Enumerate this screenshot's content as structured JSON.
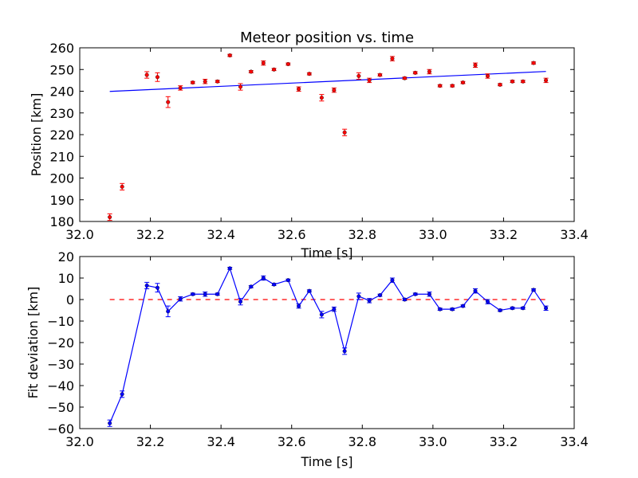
{
  "chart_data": [
    {
      "type": "scatter",
      "title": "Meteor position vs. time",
      "xlabel": "Time [s]",
      "ylabel": "Position [km]",
      "xlim": [
        32.0,
        33.4
      ],
      "ylim": [
        180,
        260
      ],
      "xticks": [
        "32.0",
        "32.2",
        "32.4",
        "32.6",
        "32.8",
        "33.0",
        "33.2",
        "33.4"
      ],
      "yticks": [
        "180",
        "190",
        "200",
        "210",
        "220",
        "230",
        "240",
        "250",
        "260"
      ],
      "grid": false,
      "marker_color": "#ff0000",
      "fit_color": "#0000ff",
      "series": [
        {
          "x": [
            32.085,
            32.12,
            32.19,
            32.22,
            32.25,
            32.285,
            32.32,
            32.355,
            32.39,
            32.425,
            32.455,
            32.485,
            32.52,
            32.55,
            32.59,
            32.62,
            32.65,
            32.685,
            32.72,
            32.75,
            32.79,
            32.82,
            32.85,
            32.885,
            32.92,
            32.95,
            32.99,
            33.02,
            33.055,
            33.085,
            33.12,
            33.155,
            33.19,
            33.225,
            33.255,
            33.285,
            33.32
          ],
          "y": [
            182,
            196,
            247.5,
            246.5,
            235,
            241.5,
            244,
            244.5,
            244.5,
            256.5,
            242,
            249,
            253,
            250,
            252.5,
            241,
            248,
            237,
            240.5,
            221,
            247,
            245,
            247.5,
            255,
            246,
            248.5,
            249,
            242.5,
            242.5,
            244,
            252,
            247,
            243,
            244.5,
            244.5,
            253,
            245
          ],
          "err": [
            1.5,
            1.5,
            1.5,
            2,
            2.5,
            1,
            0.5,
            1,
            0.5,
            0.5,
            1.5,
            0.5,
            1,
            0.5,
            0.5,
            1,
            0.5,
            1.5,
            1,
            1.5,
            1.5,
            1,
            0.5,
            1,
            0.5,
            0.5,
            1,
            0.5,
            0.5,
            0.5,
            1,
            1,
            0.5,
            0.5,
            0.5,
            0.5,
            1
          ]
        }
      ],
      "fit_line": {
        "x": [
          32.085,
          33.32
        ],
        "y": [
          239.9,
          249.1
        ]
      }
    },
    {
      "type": "line",
      "xlabel": "Time [s]",
      "ylabel": "Fit deviation [km]",
      "xlim": [
        32.0,
        33.4
      ],
      "ylim": [
        -60,
        20
      ],
      "xticks": [
        "32.0",
        "32.2",
        "32.4",
        "32.6",
        "32.8",
        "33.0",
        "33.2",
        "33.4"
      ],
      "yticks": [
        "−60",
        "−50",
        "−40",
        "−30",
        "−20",
        "−10",
        "0",
        "10",
        "20"
      ],
      "grid": false,
      "line_color": "#0000ff",
      "zero_line_color": "#ff0000",
      "series": [
        {
          "x": [
            32.085,
            32.12,
            32.19,
            32.22,
            32.25,
            32.285,
            32.32,
            32.355,
            32.39,
            32.425,
            32.455,
            32.485,
            32.52,
            32.55,
            32.59,
            32.62,
            32.65,
            32.685,
            32.72,
            32.75,
            32.79,
            32.82,
            32.85,
            32.885,
            32.92,
            32.95,
            32.99,
            33.02,
            33.055,
            33.085,
            33.12,
            33.155,
            33.19,
            33.225,
            33.255,
            33.285,
            33.32
          ],
          "y": [
            -57.5,
            -44,
            6.5,
            5.5,
            -5.5,
            0.3,
            2.5,
            2.5,
            2.5,
            14.5,
            -1,
            6,
            10,
            7,
            9,
            -3,
            4,
            -7,
            -4.5,
            -24,
            1.5,
            -0.5,
            2,
            9,
            0,
            2.5,
            2.5,
            -4.5,
            -4.5,
            -3,
            4,
            -1,
            -5,
            -4,
            -4,
            4.5,
            -4
          ],
          "err": [
            1.5,
            1.5,
            1.5,
            2,
            2.5,
            1,
            0.5,
            1,
            0.5,
            0.5,
            1.5,
            0.5,
            1,
            0.5,
            0.5,
            1,
            0.5,
            1.5,
            1,
            1.5,
            1.5,
            1,
            0.5,
            1,
            0.5,
            0.5,
            1,
            0.5,
            0.5,
            0.5,
            1,
            1,
            0.5,
            0.5,
            0.5,
            0.5,
            1
          ]
        }
      ],
      "zero_line": {
        "x": [
          32.085,
          33.32
        ],
        "y": [
          0,
          0
        ]
      }
    }
  ]
}
